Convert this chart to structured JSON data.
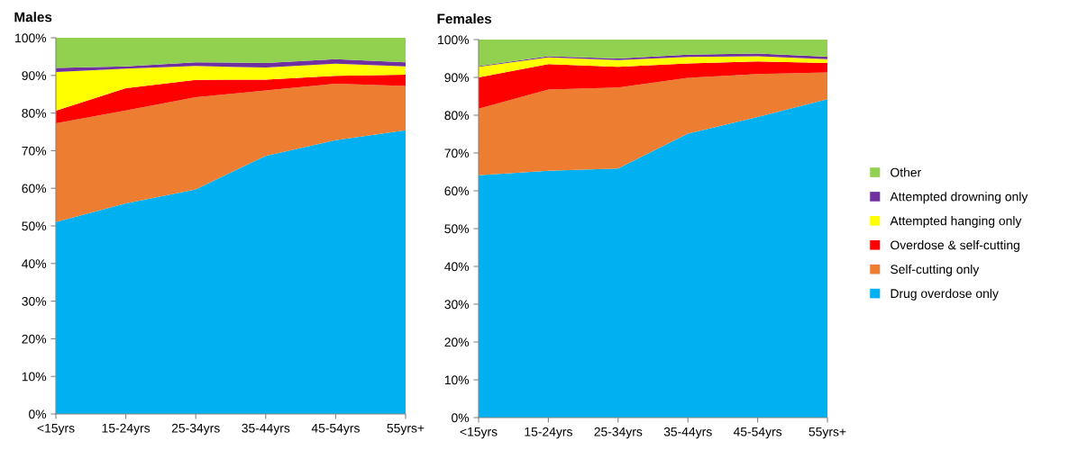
{
  "chart_data": [
    {
      "type": "area",
      "title": "Males",
      "stacked": true,
      "categories": [
        "<15yrs",
        "15-24yrs",
        "25-34yrs",
        "35-44yrs",
        "45-54yrs",
        "55yrs+"
      ],
      "series": [
        {
          "name": "Drug overdose only",
          "color": "#00b0f0",
          "values": [
            51,
            56,
            59.7,
            68.6,
            72.8,
            75.4
          ]
        },
        {
          "name": "Self-cutting only",
          "color": "#ed7d31",
          "values": [
            26.3,
            24.7,
            24.5,
            17.4,
            15.0,
            11.8
          ]
        },
        {
          "name": "Overdose & self-cutting",
          "color": "#ff0000",
          "values": [
            3.3,
            5.9,
            4.6,
            2.9,
            2.1,
            3.0
          ]
        },
        {
          "name": "Attempted hanging only",
          "color": "#ffff00",
          "values": [
            10.3,
            5.2,
            3.7,
            3.2,
            3.2,
            2.2
          ]
        },
        {
          "name": "Attempted drowning only",
          "color": "#7030a0",
          "values": [
            1.1,
            0.6,
            1.0,
            1.2,
            1.2,
            1.1
          ]
        },
        {
          "name": "Other",
          "color": "#92d050",
          "values": [
            8.0,
            7.6,
            6.5,
            6.7,
            5.7,
            6.5
          ]
        }
      ],
      "ylim": [
        0,
        100
      ],
      "yticks": [
        {
          "value": 0,
          "label": "0%"
        },
        {
          "value": 10,
          "label": "10%"
        },
        {
          "value": 20,
          "label": "20%"
        },
        {
          "value": 30,
          "label": "30%"
        },
        {
          "value": 40,
          "label": "40%"
        },
        {
          "value": 50,
          "label": "50%"
        },
        {
          "value": 60,
          "label": "60%"
        },
        {
          "value": 70,
          "label": "70%"
        },
        {
          "value": 80,
          "label": "80%"
        },
        {
          "value": 90,
          "label": "90%"
        },
        {
          "value": 100,
          "label": "100%"
        }
      ],
      "grid": false,
      "legend": "right"
    },
    {
      "type": "area",
      "title": "Females",
      "stacked": true,
      "categories": [
        "<15yrs",
        "15-24yrs",
        "25-34yrs",
        "35-44yrs",
        "45-54yrs",
        "55yrs+"
      ],
      "series": [
        {
          "color": "#00b0f0",
          "values": [
            64.1,
            65.3,
            65.9,
            75.1,
            79.5,
            84.2
          ]
        },
        {
          "color": "#ed7d31",
          "values": [
            17.6,
            21.5,
            21.4,
            14.8,
            11.4,
            7.1
          ]
        },
        {
          "color": "#ff0000",
          "values": [
            8.3,
            6.7,
            5.5,
            3.8,
            3.3,
            2.5
          ]
        },
        {
          "color": "#ffff00",
          "values": [
            2.8,
            1.8,
            1.8,
            1.7,
            1.4,
            1.0
          ]
        },
        {
          "color": "#7030a0",
          "values": [
            0.2,
            0.3,
            0.4,
            0.6,
            0.7,
            0.7
          ]
        },
        {
          "color": "#92d050",
          "values": [
            7.0,
            4.4,
            5.0,
            4.0,
            3.7,
            4.5
          ]
        }
      ],
      "ylim": [
        0,
        100
      ],
      "yticks": [
        {
          "value": 0,
          "label": "0%"
        },
        {
          "value": 10,
          "label": "10%"
        },
        {
          "value": 20,
          "label": "20%"
        },
        {
          "value": 30,
          "label": "30%"
        },
        {
          "value": 40,
          "label": "40%"
        },
        {
          "value": 50,
          "label": "50%"
        },
        {
          "value": 60,
          "label": "60%"
        },
        {
          "value": 70,
          "label": "70%"
        },
        {
          "value": 80,
          "label": "80%"
        },
        {
          "value": 90,
          "label": "90%"
        },
        {
          "value": 100,
          "label": "100%"
        }
      ],
      "grid": false
    }
  ]
}
